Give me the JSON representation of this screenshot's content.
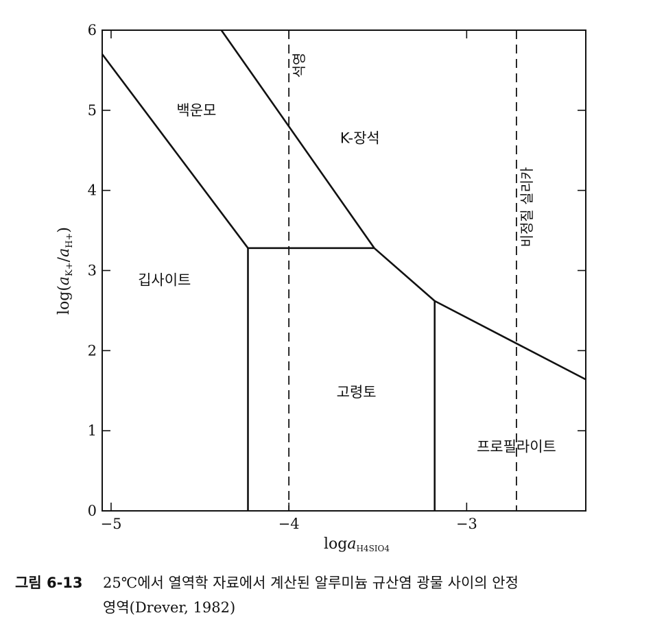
{
  "chart_data": {
    "type": "phase_diagram",
    "xlabel": "loga",
    "xlabel_sub": "H4SIO4",
    "ylabel": "log(aK+/aH+)",
    "xlim": [
      -5.05,
      -2.33
    ],
    "ylim": [
      0,
      6
    ],
    "x_ticks": [
      {
        "value": -5,
        "label": "−5"
      },
      {
        "value": -4,
        "label": "−4"
      },
      {
        "value": -3,
        "label": "−3"
      }
    ],
    "y_ticks": [
      {
        "value": 0,
        "label": "0"
      },
      {
        "value": 1,
        "label": "1"
      },
      {
        "value": 2,
        "label": "2"
      },
      {
        "value": 3,
        "label": "3"
      },
      {
        "value": 4,
        "label": "4"
      },
      {
        "value": 5,
        "label": "5"
      },
      {
        "value": 6,
        "label": "6"
      }
    ],
    "boundaries": [
      {
        "name": "gibbsite-muscovite",
        "points": [
          [
            -5.05,
            5.7
          ],
          [
            -4.23,
            3.28
          ]
        ]
      },
      {
        "name": "muscovite-kfeldspar",
        "points": [
          [
            -4.38,
            6.0
          ],
          [
            -3.52,
            3.28
          ]
        ]
      },
      {
        "name": "muscovite-kaolinite",
        "points": [
          [
            -4.23,
            3.28
          ],
          [
            -3.52,
            3.28
          ]
        ]
      },
      {
        "name": "gibbsite-kaolinite",
        "points": [
          [
            -4.23,
            0.0
          ],
          [
            -4.23,
            3.28
          ]
        ]
      },
      {
        "name": "kfeldspar-kaolinite",
        "points": [
          [
            -3.52,
            3.28
          ],
          [
            -3.18,
            2.62
          ]
        ]
      },
      {
        "name": "kaolinite-pyrophyllite",
        "points": [
          [
            -3.18,
            0.0
          ],
          [
            -3.18,
            2.62
          ]
        ]
      },
      {
        "name": "kfeldspar-pyrophyllite",
        "points": [
          [
            -3.18,
            2.62
          ],
          [
            -2.33,
            1.64
          ]
        ]
      }
    ],
    "dashed_lines": [
      {
        "name": "quartz-saturation",
        "x": -4.0,
        "label": "석영"
      },
      {
        "name": "amorphous-silica-saturation",
        "x": -2.72,
        "label": "비정질 실리카"
      }
    ],
    "regions": [
      {
        "name": "muscovite",
        "label": "백운모",
        "x": -4.52,
        "y": 5.0
      },
      {
        "name": "kfeldspar",
        "label": "K-장석",
        "x": -3.6,
        "y": 4.65
      },
      {
        "name": "gibbsite",
        "label": "깁사이트",
        "x": -4.7,
        "y": 2.88
      },
      {
        "name": "kaolinite",
        "label": "고령토",
        "x": -3.62,
        "y": 1.48
      },
      {
        "name": "pyrophyllite",
        "label": "프로필라이트",
        "x": -2.72,
        "y": 0.8
      }
    ]
  },
  "caption": {
    "label": "그림 6-13",
    "line1": "25℃에서 열역학 자료에서 계산된 알루미늄 규산염 광물 사이의 안정",
    "line2": "영역(Drever, 1982)"
  }
}
